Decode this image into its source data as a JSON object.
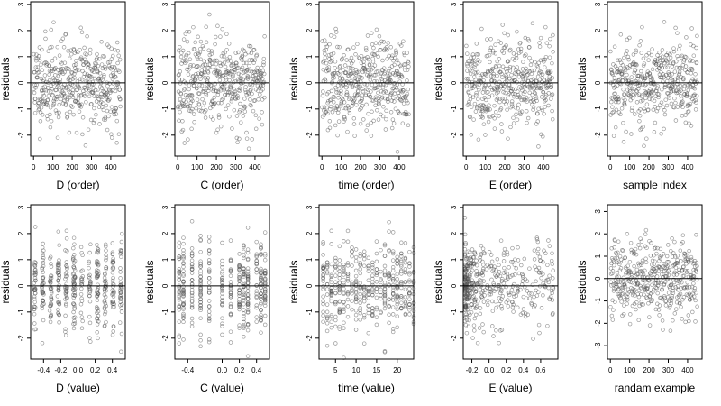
{
  "chart_data": [
    {
      "type": "scatter",
      "xlabel": "D (order)",
      "ylabel": "residuals",
      "xlim": [
        -15,
        475
      ],
      "ylim": [
        -2.8,
        3.1
      ],
      "xticks": [
        0,
        100,
        200,
        300,
        400
      ],
      "xtick_labels": [
        "0",
        "100",
        "200",
        "300",
        "400"
      ],
      "yticks": [
        -2,
        -1,
        0,
        1,
        2,
        3
      ],
      "ytick_labels": [
        "-2",
        "-1",
        "0",
        "1",
        "2",
        "3"
      ],
      "hline": 0,
      "x_mode": "index",
      "n": 450,
      "seed": 11
    },
    {
      "type": "scatter",
      "xlabel": "C (order)",
      "ylabel": "residuals",
      "xlim": [
        -15,
        475
      ],
      "ylim": [
        -2.8,
        3.1
      ],
      "xticks": [
        0,
        100,
        200,
        300,
        400
      ],
      "xtick_labels": [
        "0",
        "100",
        "200",
        "300",
        "400"
      ],
      "yticks": [
        -2,
        -1,
        0,
        1,
        2,
        3
      ],
      "ytick_labels": [
        "-2",
        "-1",
        "0",
        "1",
        "2",
        "3"
      ],
      "hline": 0,
      "x_mode": "index",
      "n": 450,
      "seed": 23
    },
    {
      "type": "scatter",
      "xlabel": "time (order)",
      "ylabel": "residuals",
      "xlim": [
        -15,
        475
      ],
      "ylim": [
        -2.8,
        3.1
      ],
      "xticks": [
        0,
        100,
        200,
        300,
        400
      ],
      "xtick_labels": [
        "0",
        "100",
        "200",
        "300",
        "400"
      ],
      "yticks": [
        -2,
        -1,
        0,
        1,
        2,
        3
      ],
      "ytick_labels": [
        "-2",
        "-1",
        "0",
        "1",
        "2",
        "3"
      ],
      "hline": 0,
      "x_mode": "index",
      "n": 450,
      "seed": 37
    },
    {
      "type": "scatter",
      "xlabel": "E (order)",
      "ylabel": "residuals",
      "xlim": [
        -15,
        475
      ],
      "ylim": [
        -2.8,
        3.1
      ],
      "xticks": [
        0,
        100,
        200,
        300,
        400
      ],
      "xtick_labels": [
        "0",
        "100",
        "200",
        "300",
        "400"
      ],
      "yticks": [
        -2,
        -1,
        0,
        1,
        2,
        3
      ],
      "ytick_labels": [
        "-2",
        "-1",
        "0",
        "1",
        "2",
        "3"
      ],
      "hline": 0,
      "x_mode": "index",
      "n": 450,
      "seed": 41
    },
    {
      "type": "scatter",
      "xlabel": "sample index",
      "ylabel": "residuals",
      "xlim": [
        -15,
        475
      ],
      "ylim": [
        -2.8,
        3.1
      ],
      "xticks": [
        0,
        100,
        200,
        300,
        400
      ],
      "xtick_labels": [
        "0",
        "100",
        "200",
        "300",
        "400"
      ],
      "yticks": [
        -2,
        -1,
        0,
        1,
        2,
        3
      ],
      "ytick_labels": [
        "-2",
        "-1",
        "0",
        "1",
        "2",
        "3"
      ],
      "hline": 0,
      "x_mode": "index",
      "n": 450,
      "seed": 53
    },
    {
      "type": "scatter",
      "xlabel": "D (value)",
      "ylabel": "residuals",
      "xlim": [
        -0.55,
        0.55
      ],
      "ylim": [
        -2.8,
        3.1
      ],
      "xticks": [
        -0.4,
        -0.2,
        0.0,
        0.2,
        0.4
      ],
      "xtick_labels": [
        "-0.4",
        "-0.2",
        "0.0",
        "0.2",
        "0.4"
      ],
      "yticks": [
        -2,
        -1,
        0,
        1,
        2,
        3
      ],
      "ytick_labels": [
        "-2",
        "-1",
        "0",
        "1",
        "2",
        "3"
      ],
      "hline": 0,
      "x_mode": "banded",
      "x_range": [
        -0.5,
        0.5
      ],
      "band_count": 12,
      "n": 450,
      "seed": 61
    },
    {
      "type": "scatter",
      "xlabel": "C (value)",
      "ylabel": "residuals",
      "xlim": [
        -0.55,
        0.55
      ],
      "ylim": [
        -2.8,
        3.1
      ],
      "xticks": [
        -0.4,
        0.0,
        0.2,
        0.4
      ],
      "xtick_labels": [
        "-0.4",
        "0.0",
        "0.2",
        "0.4"
      ],
      "yticks": [
        -2,
        -1,
        0,
        1,
        2,
        3
      ],
      "ytick_labels": [
        "-2",
        "-1",
        "0",
        "1",
        "2",
        "3"
      ],
      "hline": 0,
      "x_mode": "discrete",
      "x_levels": [
        -0.5,
        -0.45,
        -0.35,
        -0.25,
        -0.15,
        0.0,
        0.1,
        0.2,
        0.25,
        0.3,
        0.4,
        0.45,
        0.5
      ],
      "n": 450,
      "seed": 71
    },
    {
      "type": "scatter",
      "xlabel": "time (value)",
      "ylabel": "residuals",
      "xlim": [
        1,
        24
      ],
      "ylim": [
        -2.8,
        3.1
      ],
      "xticks": [
        5,
        10,
        15,
        20
      ],
      "xtick_labels": [
        "5",
        "10",
        "15",
        "20"
      ],
      "yticks": [
        -2,
        -1,
        0,
        1,
        2,
        3
      ],
      "ytick_labels": [
        "-2",
        "-1",
        "0",
        "1",
        "2",
        "3"
      ],
      "hline": 0,
      "x_mode": "discrete",
      "x_levels": [
        2,
        3,
        4,
        5,
        6,
        7,
        8,
        9,
        10,
        11,
        12,
        13,
        14,
        15,
        16,
        17,
        18,
        19,
        20,
        21,
        22,
        23,
        24
      ],
      "n": 450,
      "seed": 83
    },
    {
      "type": "scatter",
      "xlabel": "E (value)",
      "ylabel": "residuals",
      "xlim": [
        -0.3,
        0.8
      ],
      "ylim": [
        -2.8,
        3.1
      ],
      "xticks": [
        -0.2,
        0.0,
        0.2,
        0.4,
        0.6
      ],
      "xtick_labels": [
        "-0.2",
        "0.0",
        "0.2",
        "0.4",
        "0.6"
      ],
      "yticks": [
        -2,
        -1,
        0,
        1,
        2,
        3
      ],
      "ytick_labels": [
        "-2",
        "-1",
        "0",
        "1",
        "2",
        "3"
      ],
      "hline": 0,
      "x_mode": "skewed",
      "x_range": [
        -0.28,
        0.75
      ],
      "n": 450,
      "seed": 97
    },
    {
      "type": "scatter",
      "xlabel": "randam example",
      "ylabel": "residuals",
      "xlim": [
        -15,
        475
      ],
      "ylim": [
        -3.6,
        3.3
      ],
      "xticks": [
        0,
        100,
        200,
        300,
        400
      ],
      "xtick_labels": [
        "0",
        "100",
        "200",
        "300",
        "400"
      ],
      "yticks": [
        -3,
        -2,
        -1,
        0,
        1,
        2,
        3
      ],
      "ytick_labels": [
        "-3",
        "-2",
        "-1",
        "0",
        "1",
        "2",
        "3"
      ],
      "hline": 0,
      "x_mode": "index",
      "n": 450,
      "seed": 101
    }
  ]
}
